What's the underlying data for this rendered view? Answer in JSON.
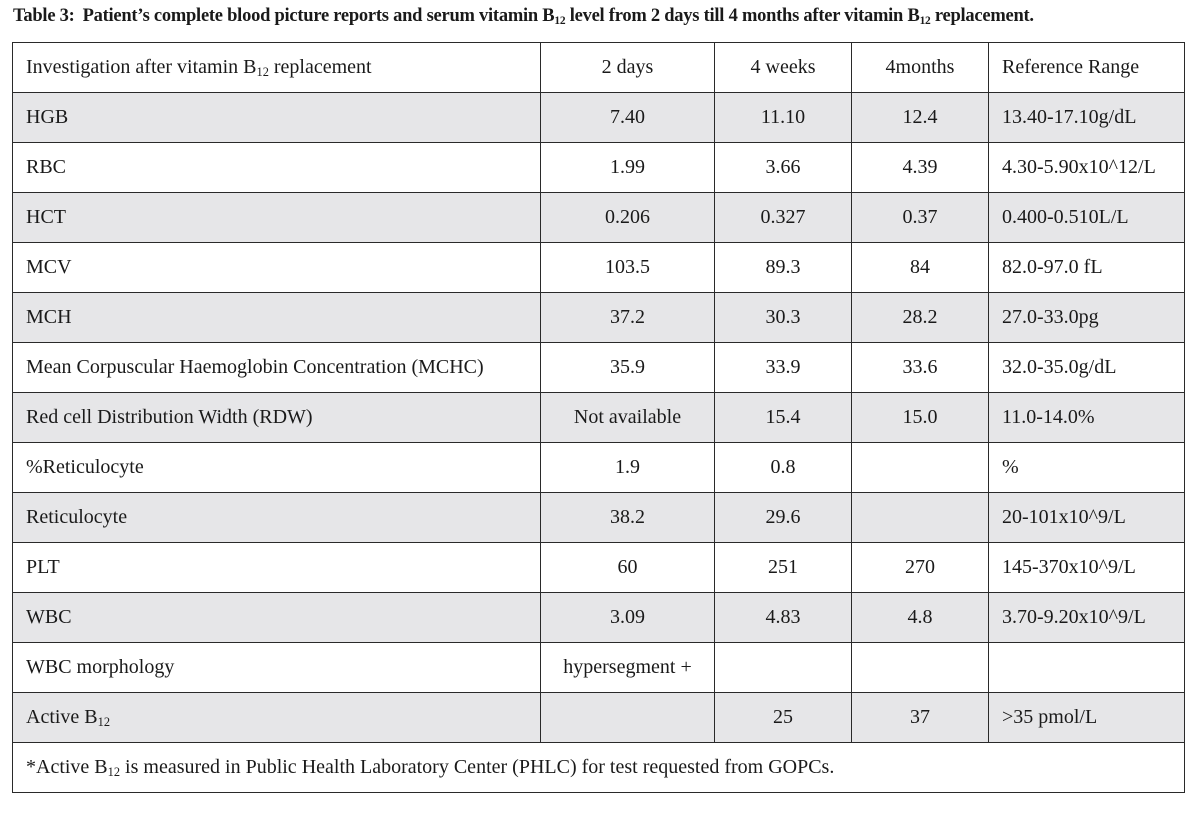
{
  "caption": {
    "label": "Table 3:",
    "parts": [
      "Patient’s complete blood picture reports and serum vitamin B",
      "12",
      " level from 2 days till 4 months after vitamin B",
      "12",
      " replacement."
    ]
  },
  "table": {
    "header": {
      "investigation": [
        "Investigation after vitamin B",
        "12",
        " replacement"
      ],
      "col_2days": "2 days",
      "col_4weeks": "4 weeks",
      "col_4months": "4months",
      "col_reference": "Reference Range"
    },
    "rows": [
      {
        "name": "HGB",
        "d2": "7.40",
        "w4": "11.10",
        "m4": "12.4",
        "ref": "13.40-17.10g/dL"
      },
      {
        "name": "RBC",
        "d2": "1.99",
        "w4": "3.66",
        "m4": "4.39",
        "ref": "4.30-5.90x10^12/L"
      },
      {
        "name": "HCT",
        "d2": "0.206",
        "w4": "0.327",
        "m4": "0.37",
        "ref": "0.400-0.510L/L"
      },
      {
        "name": "MCV",
        "d2": "103.5",
        "w4": "89.3",
        "m4": "84",
        "ref": "82.0-97.0 fL"
      },
      {
        "name": "MCH",
        "d2": "37.2",
        "w4": "30.3",
        "m4": "28.2",
        "ref": "27.0-33.0pg"
      },
      {
        "name": "Mean Corpuscular Haemoglobin Concentration (MCHC)",
        "d2": "35.9",
        "w4": "33.9",
        "m4": "33.6",
        "ref": "32.0-35.0g/dL"
      },
      {
        "name": "Red cell Distribution Width (RDW)",
        "d2": "Not available",
        "w4": "15.4",
        "m4": "15.0",
        "ref": "11.0-14.0%"
      },
      {
        "name": "%Reticulocyte",
        "d2": "1.9",
        "w4": "0.8",
        "m4": "",
        "ref": "%"
      },
      {
        "name": "Reticulocyte",
        "d2": "38.2",
        "w4": "29.6",
        "m4": "",
        "ref": "20-101x10^9/L"
      },
      {
        "name": "PLT",
        "d2": "60",
        "w4": "251",
        "m4": "270",
        "ref": "145-370x10^9/L"
      },
      {
        "name": "WBC",
        "d2": "3.09",
        "w4": "4.83",
        "m4": "4.8",
        "ref": "3.70-9.20x10^9/L"
      },
      {
        "name": "WBC morphology",
        "d2": "hypersegment +",
        "w4": "",
        "m4": "",
        "ref": ""
      },
      {
        "name": [
          "Active B",
          "12"
        ],
        "d2": "",
        "w4": "25",
        "m4": "37",
        "ref": ">35 pmol/L"
      }
    ],
    "footnote": [
      "*Active B",
      "12",
      " is measured in Public Health Laboratory Center (PHLC) for test requested from GOPCs."
    ]
  },
  "colors": {
    "shade_row": "#e6e6e8",
    "border": "#2a2a2a",
    "text": "#1a1a1a"
  }
}
